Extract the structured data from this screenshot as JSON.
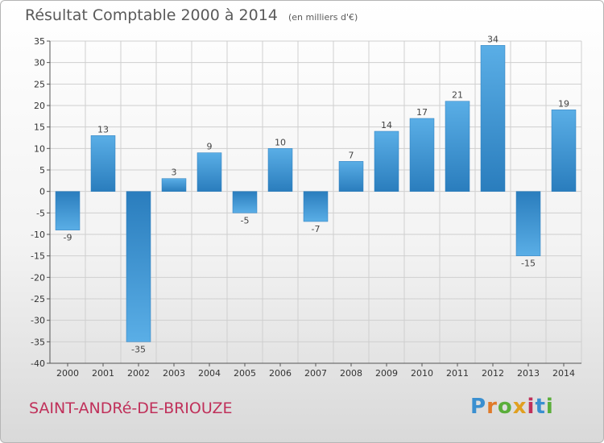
{
  "header": {
    "title": "Résultat Comptable 2000 à 2014",
    "subtitle": "(en milliers d'€)"
  },
  "footer": {
    "city": "SAINT-ANDRé-DE-BRIOUZE",
    "logo": {
      "text": "Proxiti",
      "letters": [
        {
          "ch": "P",
          "color": "#3a8fd0"
        },
        {
          "ch": "r",
          "color": "#e07a2a"
        },
        {
          "ch": "o",
          "color": "#5aae3a"
        },
        {
          "ch": "x",
          "color": "#e0a020"
        },
        {
          "ch": "i",
          "color": "#c0305a"
        },
        {
          "ch": "t",
          "color": "#3a8fd0"
        },
        {
          "ch": "i",
          "color": "#5aae3a"
        }
      ]
    }
  },
  "colors": {
    "bar_light": "#5aaee6",
    "bar_dark": "#2a7dbd",
    "grid": "#cfcfcf",
    "axis": "#555555"
  },
  "chart_data": {
    "type": "bar",
    "categories": [
      "2000",
      "2001",
      "2002",
      "2003",
      "2004",
      "2005",
      "2006",
      "2007",
      "2008",
      "2009",
      "2010",
      "2011",
      "2012",
      "2013",
      "2014"
    ],
    "values": [
      -9,
      13,
      -35,
      3,
      9,
      -5,
      10,
      -7,
      7,
      14,
      17,
      21,
      34,
      -15,
      19
    ],
    "data_labels": [
      "-9",
      "13",
      "-35",
      "3",
      "9",
      "-5",
      "10",
      "-7",
      "7",
      "14",
      "17",
      "21",
      "34",
      "-15",
      "19"
    ],
    "ylim": [
      -40,
      35
    ],
    "yticks": [
      35,
      30,
      25,
      20,
      15,
      10,
      5,
      0,
      -5,
      -10,
      -15,
      -20,
      -25,
      -30,
      -35,
      -40
    ],
    "ytick_labels": [
      "35",
      "30",
      "25",
      "20",
      "15",
      "10",
      "5",
      "0",
      "-5",
      "-10",
      "-15",
      "-20",
      "-25",
      "-30",
      "-35",
      "-40"
    ],
    "grid": true,
    "xlabel": "",
    "ylabel": ""
  }
}
